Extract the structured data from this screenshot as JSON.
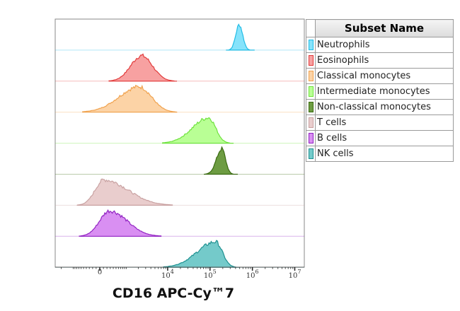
{
  "chart_data": {
    "type": "histogram",
    "layout": "staggered offset overlay",
    "xlabel": "CD16 APC-Cy™7",
    "x_scale": "biexponential",
    "xlim": [
      -2800,
      17000000
    ],
    "x_ticks": [
      {
        "value": 0,
        "base": "0",
        "exp": ""
      },
      {
        "value": 10000,
        "base": "10",
        "exp": "4"
      },
      {
        "value": 100000,
        "base": "10",
        "exp": "5"
      },
      {
        "value": 1000000,
        "base": "10",
        "exp": "6"
      },
      {
        "value": 10000000,
        "base": "10",
        "exp": "7"
      }
    ],
    "legend_title": "Subset Name",
    "legend_position": "right",
    "series": [
      {
        "name": "Neutrophils",
        "peak": 490000,
        "range": [
          300000,
          800000
        ],
        "fill": "#86e3fb",
        "stroke": "#22bde6"
      },
      {
        "name": "Eosinophils",
        "peak": 2400,
        "range": [
          400,
          11300
        ],
        "fill": "#f7a1a1",
        "stroke": "#e23b3b"
      },
      {
        "name": "Classical monocytes",
        "peak": 2100,
        "range": [
          -380,
          12000
        ],
        "fill": "#fcd3a6",
        "stroke": "#f0a24e"
      },
      {
        "name": "Intermediate monocytes",
        "peak": 93000,
        "range": [
          9500,
          250000
        ],
        "fill": "#b9ff95",
        "stroke": "#6fe23e"
      },
      {
        "name": "Non-classical monocytes",
        "peak": 190000,
        "range": [
          90000,
          320000
        ],
        "fill": "#6d9c42",
        "stroke": "#3b6b12"
      },
      {
        "name": "T cells",
        "peak": 115,
        "range": [
          -600,
          9000
        ],
        "fill": "#e9cdcd",
        "stroke": "#c9a2a2"
      },
      {
        "name": "B cells",
        "peak": 280,
        "range": [
          -500,
          5000
        ],
        "fill": "#d98ff2",
        "stroke": "#9122c2"
      },
      {
        "name": "NK cells",
        "peak": 136000,
        "range": [
          10000,
          350000
        ],
        "fill": "#74caca",
        "stroke": "#1f9191"
      }
    ]
  }
}
